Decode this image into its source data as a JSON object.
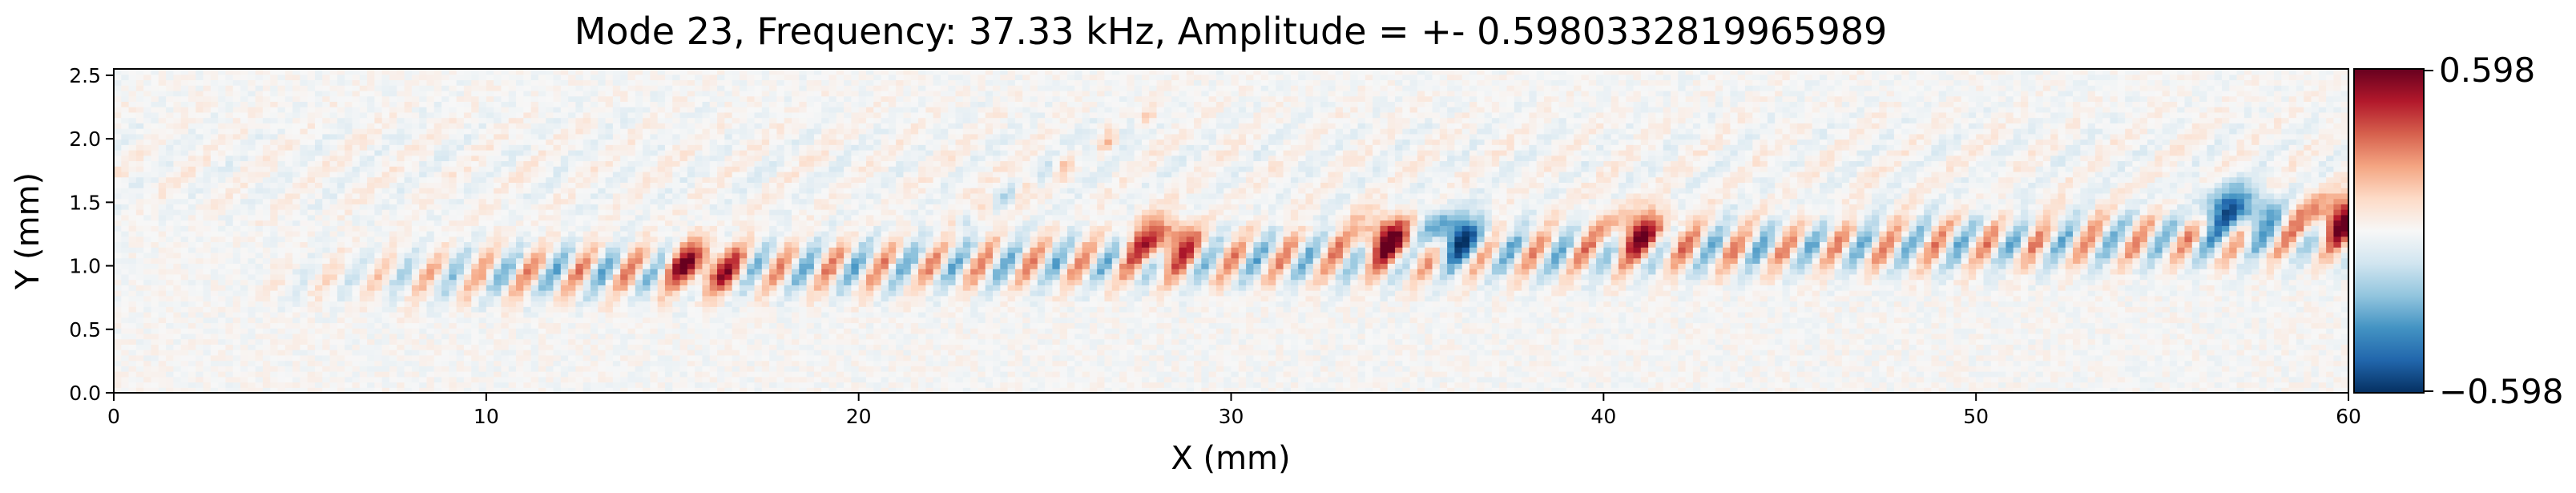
{
  "chart_data": {
    "type": "heatmap",
    "title": "Mode 23, Frequency: 37.33 kHz, Amplitude = +- 0.5980332819965989",
    "xlabel": "X (mm)",
    "ylabel": "Y (mm)",
    "xlim": [
      0,
      60
    ],
    "ylim": [
      0.0,
      2.55
    ],
    "xticks": [
      "0",
      "10",
      "20",
      "30",
      "40",
      "50",
      "60"
    ],
    "yticks": [
      "0.0",
      "0.5",
      "1.0",
      "1.5",
      "2.0",
      "2.5"
    ],
    "colorbar": {
      "min_label": "−0.598",
      "max_label": "0.598",
      "vmin": -0.598,
      "vmax": 0.598,
      "colormap": [
        "#053061",
        "#2166ac",
        "#4393c3",
        "#92c5de",
        "#d1e5f0",
        "#f7f7f7",
        "#fddbc7",
        "#f4a582",
        "#d6604d",
        "#b2182b",
        "#67001f"
      ]
    },
    "features": {
      "band_center_y": 1.0,
      "band_start_x": 3,
      "band_end_x": 60,
      "wavepacket_peaks": [
        {
          "x": 15.8,
          "y": 1.0,
          "value": 0.45
        },
        {
          "x": 28.2,
          "y": 1.2,
          "value": 0.42
        },
        {
          "x": 34.3,
          "y": 1.22,
          "value": 0.5
        },
        {
          "x": 35.9,
          "y": 1.25,
          "value": -0.48
        },
        {
          "x": 41.0,
          "y": 1.27,
          "value": 0.4
        },
        {
          "x": 57.0,
          "y": 1.45,
          "value": -0.45
        },
        {
          "x": 59.8,
          "y": 1.38,
          "value": 0.5
        }
      ],
      "oblique_streak": {
        "x_from": 22.5,
        "y_from": 1.3,
        "x_to": 28.0,
        "y_to": 2.2
      }
    }
  }
}
